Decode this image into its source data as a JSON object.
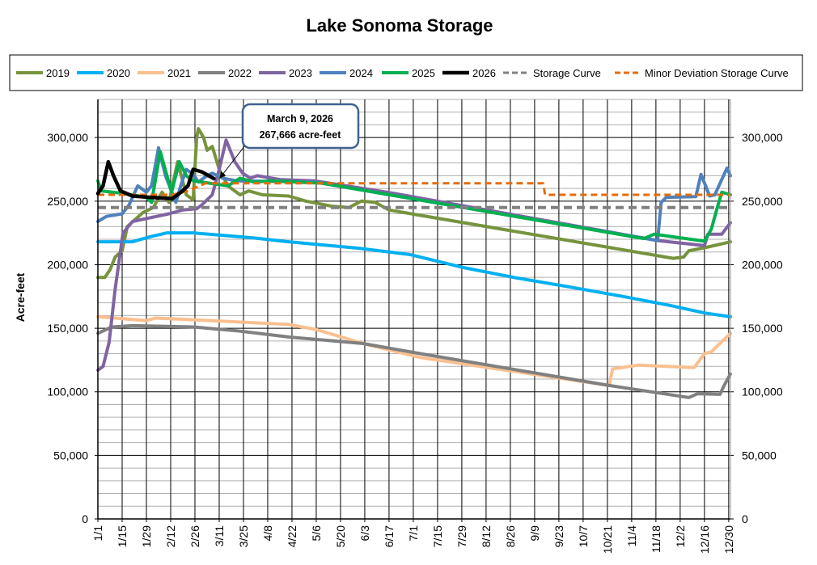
{
  "chart_data": {
    "type": "line",
    "title": "Lake Sonoma Storage",
    "ylabel": "Acre-feet",
    "xlabel": "",
    "xlim_days": [
      0,
      365
    ],
    "ylim": [
      0,
      330000
    ],
    "grid": true,
    "secondary_y_axis": true,
    "legend_position": "top",
    "x_tick_labels": [
      "1/1",
      "1/15",
      "1/29",
      "2/12",
      "2/26",
      "3/11",
      "3/25",
      "4/8",
      "4/22",
      "5/6",
      "5/20",
      "6/3",
      "6/17",
      "7/1",
      "7/15",
      "7/29",
      "8/12",
      "8/26",
      "9/9",
      "9/23",
      "10/7",
      "10/21",
      "11/4",
      "11/18",
      "12/2",
      "12/16",
      "12/30"
    ],
    "y_tick_values": [
      0,
      50000,
      100000,
      150000,
      200000,
      250000,
      300000
    ],
    "y_tick_labels": [
      "0",
      "50,000",
      "100,000",
      "150,000",
      "200,000",
      "250,000",
      "300,000"
    ],
    "x_units": "day of year (0 = 1/1)",
    "series": [
      {
        "name": "2019",
        "color": "#77933c",
        "dash": false,
        "points": [
          [
            0,
            190000
          ],
          [
            4,
            190000
          ],
          [
            7,
            196000
          ],
          [
            10,
            206000
          ],
          [
            14,
            211000
          ],
          [
            17,
            230000
          ],
          [
            26,
            241000
          ],
          [
            32,
            245000
          ],
          [
            37,
            257000
          ],
          [
            41,
            249000
          ],
          [
            46,
            281000
          ],
          [
            51,
            255000
          ],
          [
            55,
            251000
          ],
          [
            57,
            300000
          ],
          [
            58,
            307000
          ],
          [
            61,
            300000
          ],
          [
            63,
            290000
          ],
          [
            66,
            293000
          ],
          [
            70,
            275000
          ],
          [
            75,
            262000
          ],
          [
            82,
            255000
          ],
          [
            87,
            258000
          ],
          [
            95,
            255000
          ],
          [
            110,
            254000
          ],
          [
            120,
            250000
          ],
          [
            135,
            246000
          ],
          [
            145,
            245000
          ],
          [
            152,
            250000
          ],
          [
            160,
            249000
          ],
          [
            168,
            243000
          ],
          [
            332,
            205000
          ],
          [
            338,
            206000
          ],
          [
            341,
            211000
          ],
          [
            349,
            213000
          ],
          [
            362,
            217000
          ],
          [
            365,
            218000
          ]
        ]
      },
      {
        "name": "2020",
        "color": "#00b0f0",
        "dash": false,
        "points": [
          [
            0,
            218000
          ],
          [
            20,
            218000
          ],
          [
            30,
            222000
          ],
          [
            40,
            225000
          ],
          [
            55,
            225000
          ],
          [
            90,
            221000
          ],
          [
            110,
            218000
          ],
          [
            150,
            213000
          ],
          [
            180,
            208000
          ],
          [
            210,
            198000
          ],
          [
            240,
            190000
          ],
          [
            270,
            183000
          ],
          [
            303,
            175000
          ],
          [
            330,
            168000
          ],
          [
            350,
            162000
          ],
          [
            365,
            159000
          ]
        ]
      },
      {
        "name": "2021",
        "color": "#fac090",
        "dash": false,
        "points": [
          [
            0,
            159000
          ],
          [
            10,
            158000
          ],
          [
            28,
            156000
          ],
          [
            33,
            158000
          ],
          [
            50,
            157000
          ],
          [
            80,
            155000
          ],
          [
            110,
            153000
          ],
          [
            126,
            149000
          ],
          [
            153,
            138000
          ],
          [
            186,
            127000
          ],
          [
            295,
            105000
          ],
          [
            297,
            118000
          ],
          [
            312,
            121000
          ],
          [
            344,
            119000
          ],
          [
            350,
            130000
          ],
          [
            354,
            131500
          ],
          [
            365,
            146000
          ]
        ]
      },
      {
        "name": "2022",
        "color": "#808080",
        "dash": false,
        "points": [
          [
            0,
            146000
          ],
          [
            8,
            151000
          ],
          [
            20,
            152000
          ],
          [
            55,
            151000
          ],
          [
            80,
            148000
          ],
          [
            111,
            143000
          ],
          [
            153,
            138000
          ],
          [
            186,
            130000
          ],
          [
            295,
            105000
          ],
          [
            341,
            95500
          ],
          [
            346,
            98500
          ],
          [
            359,
            98000
          ],
          [
            361,
            104000
          ],
          [
            365,
            114000
          ]
        ]
      },
      {
        "name": "2023",
        "color": "#8064a2",
        "dash": false,
        "points": [
          [
            0,
            117000
          ],
          [
            3,
            120000
          ],
          [
            6.5,
            139000
          ],
          [
            10,
            181000
          ],
          [
            14.5,
            225000
          ],
          [
            20,
            234000
          ],
          [
            34,
            238000
          ],
          [
            41,
            240000
          ],
          [
            49,
            243000
          ],
          [
            57,
            244000
          ],
          [
            60,
            247000
          ],
          [
            66,
            255000
          ],
          [
            69.5,
            272000
          ],
          [
            74,
            298000
          ],
          [
            79,
            281000
          ],
          [
            83.5,
            272000
          ],
          [
            88,
            268000
          ],
          [
            92,
            270000
          ],
          [
            105,
            267000
          ],
          [
            125,
            266000
          ],
          [
            167,
            257000
          ],
          [
            323,
            219000
          ],
          [
            350,
            215000
          ],
          [
            352,
            224000
          ],
          [
            360,
            224000
          ],
          [
            365,
            233000
          ]
        ]
      },
      {
        "name": "2024",
        "color": "#4f81bd",
        "dash": false,
        "points": [
          [
            0,
            234000
          ],
          [
            5,
            238000
          ],
          [
            14,
            240000
          ],
          [
            18,
            247000
          ],
          [
            23,
            262000
          ],
          [
            28,
            257000
          ],
          [
            31,
            262000
          ],
          [
            35,
            292000
          ],
          [
            39,
            270000
          ],
          [
            45,
            249000
          ],
          [
            48,
            263000
          ],
          [
            51,
            275000
          ],
          [
            55,
            271000
          ],
          [
            58,
            265000
          ],
          [
            62,
            269000
          ],
          [
            66,
            272000
          ],
          [
            72,
            268000
          ],
          [
            80,
            266000
          ],
          [
            125,
            265000
          ],
          [
            323,
            219000
          ],
          [
            325,
            249000
          ],
          [
            328,
            253000
          ],
          [
            345,
            253500
          ],
          [
            348,
            271000
          ],
          [
            353,
            254000
          ],
          [
            356,
            255000
          ],
          [
            363,
            276000
          ],
          [
            365,
            270000
          ]
        ]
      },
      {
        "name": "2025",
        "color": "#00b050",
        "dash": false,
        "points": [
          [
            0,
            266000
          ],
          [
            2,
            258000
          ],
          [
            15,
            256000
          ],
          [
            28,
            253000
          ],
          [
            31,
            249000
          ],
          [
            36,
            289000
          ],
          [
            42.5,
            257000
          ],
          [
            47,
            281000
          ],
          [
            51,
            270000
          ],
          [
            55,
            266000
          ],
          [
            65,
            264000
          ],
          [
            75,
            262000
          ],
          [
            82,
            268000
          ],
          [
            90,
            265000
          ],
          [
            100,
            266000
          ],
          [
            130,
            264000
          ],
          [
            315,
            220500
          ],
          [
            321,
            224000
          ],
          [
            350,
            218500
          ],
          [
            354,
            228000
          ],
          [
            357,
            243000
          ],
          [
            360,
            257000
          ],
          [
            365,
            255000
          ]
        ]
      },
      {
        "name": "Storage Curve",
        "color": "#808080",
        "dash": true,
        "points": [
          [
            0,
            245000
          ],
          [
            365,
            245000
          ]
        ]
      },
      {
        "name": "Minor Deviation Storage Curve",
        "color": "#e46c0a",
        "dash": true,
        "points": [
          [
            0,
            255000
          ],
          [
            43,
            255000
          ],
          [
            52,
            258000
          ],
          [
            62,
            264000
          ],
          [
            257,
            264000
          ],
          [
            258,
            255000
          ],
          [
            365,
            255000
          ]
        ]
      },
      {
        "name": "2026",
        "color": "#000000",
        "dash": false,
        "points": [
          [
            0,
            256000
          ],
          [
            3,
            262000
          ],
          [
            6,
            281000
          ],
          [
            9,
            270000
          ],
          [
            13,
            258000
          ],
          [
            20,
            254000
          ],
          [
            30,
            253000
          ],
          [
            43,
            252000
          ],
          [
            48,
            257000
          ],
          [
            52,
            262000
          ],
          [
            55,
            275000
          ],
          [
            60,
            273000
          ],
          [
            67,
            267666
          ]
        ]
      }
    ],
    "annotation": {
      "line1": "March 9, 2026",
      "line2": "267,666 acre-feet",
      "target_day": 67,
      "target_value": 267666
    }
  }
}
